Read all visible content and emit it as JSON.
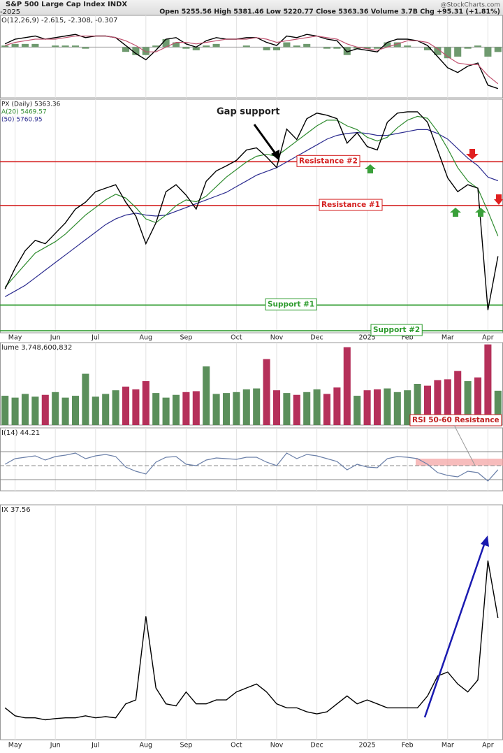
{
  "header": {
    "title": "S&P 500 Large Cap Index INDX",
    "quote": "Open 5255.56  High 5381.46  Low 5220.77  Close 5363.36  Volume 3.7B  Chg +95.31 (+1.81%)",
    "credit": "@StockCharts.com",
    "period": "-2025"
  },
  "chart_data": [
    {
      "type": "macd",
      "label": "O(12,26,9) -2.615, -2.308, -0.307",
      "ylim": [
        -3.2,
        2.0
      ],
      "hlines": [
        {
          "value": 0,
          "color": "#999999"
        }
      ],
      "series": [
        {
          "style": "bar",
          "color": "#6f9a6f",
          "values": [
            0.1,
            0.2,
            0.2,
            0.2,
            0.0,
            0.1,
            0.1,
            0.1,
            -0.1,
            0.0,
            0.0,
            0.0,
            -0.3,
            -0.5,
            -0.5,
            0.1,
            0.5,
            0.3,
            -0.1,
            -0.2,
            0.1,
            0.2,
            0.0,
            0.0,
            0.1,
            0.0,
            -0.2,
            -0.2,
            0.3,
            0.1,
            0.2,
            0.0,
            -0.1,
            -0.1,
            -0.5,
            -0.1,
            -0.1,
            -0.1,
            0.3,
            0.3,
            0.1,
            0.0,
            -0.2,
            -0.5,
            -0.7,
            -0.6,
            -0.1,
            0.1,
            -0.6,
            -0.307
          ]
        },
        {
          "style": "line",
          "color": "#000000",
          "values": [
            0.2,
            0.5,
            0.6,
            0.7,
            0.5,
            0.6,
            0.7,
            0.8,
            0.6,
            0.7,
            0.7,
            0.6,
            0.1,
            -0.4,
            -0.8,
            -0.2,
            0.5,
            0.6,
            0.2,
            0.0,
            0.4,
            0.6,
            0.5,
            0.5,
            0.6,
            0.6,
            0.3,
            0.1,
            0.7,
            0.6,
            0.8,
            0.7,
            0.5,
            0.4,
            -0.3,
            -0.1,
            -0.2,
            -0.3,
            0.3,
            0.5,
            0.5,
            0.4,
            0.1,
            -0.6,
            -1.3,
            -1.6,
            -1.2,
            -1.0,
            -2.4,
            -2.615
          ]
        },
        {
          "style": "line",
          "color": "#c0506e",
          "values": [
            0.1,
            0.3,
            0.4,
            0.5,
            0.5,
            0.5,
            0.6,
            0.7,
            0.7,
            0.7,
            0.7,
            0.6,
            0.4,
            0.1,
            -0.3,
            -0.3,
            0.0,
            0.3,
            0.3,
            0.2,
            0.3,
            0.4,
            0.5,
            0.5,
            0.5,
            0.6,
            0.5,
            0.3,
            0.4,
            0.5,
            0.6,
            0.7,
            0.6,
            0.5,
            0.2,
            0.0,
            -0.1,
            -0.2,
            0.0,
            0.2,
            0.4,
            0.4,
            0.3,
            -0.1,
            -0.6,
            -1.0,
            -1.1,
            -1.1,
            -1.8,
            -2.308
          ]
        }
      ]
    },
    {
      "type": "line",
      "annotation": "Gap support",
      "ylim": [
        4960,
        6190
      ],
      "categories": [
        null,
        "May",
        null,
        null,
        null,
        "Jun",
        null,
        null,
        null,
        "Jul",
        null,
        null,
        null,
        null,
        "Aug",
        null,
        null,
        null,
        "Sep",
        null,
        null,
        null,
        null,
        "Oct",
        null,
        null,
        null,
        "Nov",
        null,
        null,
        null,
        "Dec",
        null,
        null,
        null,
        null,
        "2025",
        null,
        null,
        null,
        "Feb",
        null,
        null,
        null,
        "Mar",
        null,
        null,
        null,
        "Apr",
        null
      ],
      "hlines": [
        {
          "value": 5861,
          "color": "#d42020",
          "label": "Resistance #2"
        },
        {
          "value": 5630,
          "color": "#d42020",
          "label": "Resistance #1"
        },
        {
          "value": 5106,
          "color": "#2a9a2a",
          "label": "Support #1"
        },
        {
          "value": 4971,
          "color": "#2a9a2a",
          "label": "Support #2"
        }
      ],
      "series": [
        {
          "style": "line",
          "color": "#2b2b8f",
          "label": "(50) 5760.95",
          "values": [
            5150,
            5180,
            5210,
            5250,
            5290,
            5330,
            5370,
            5410,
            5450,
            5490,
            5530,
            5560,
            5580,
            5590,
            5580,
            5575,
            5580,
            5600,
            5620,
            5640,
            5660,
            5680,
            5700,
            5730,
            5760,
            5790,
            5810,
            5830,
            5860,
            5890,
            5920,
            5950,
            5980,
            6000,
            6010,
            6015,
            6010,
            6000,
            6000,
            6010,
            6020,
            6030,
            6030,
            6010,
            5980,
            5930,
            5880,
            5840,
            5780,
            5760.95
          ]
        },
        {
          "style": "line",
          "color": "#2e8b2e",
          "label": "A(20) 5469.57",
          "values": [
            5200,
            5260,
            5320,
            5380,
            5410,
            5440,
            5480,
            5530,
            5580,
            5620,
            5660,
            5690,
            5670,
            5620,
            5560,
            5540,
            5580,
            5630,
            5660,
            5650,
            5680,
            5730,
            5780,
            5820,
            5860,
            5890,
            5900,
            5890,
            5930,
            5970,
            6010,
            6050,
            6080,
            6080,
            6050,
            6030,
            5990,
            5970,
            5990,
            6040,
            6080,
            6100,
            6090,
            6020,
            5930,
            5830,
            5760,
            5720,
            5600,
            5469.57
          ]
        },
        {
          "style": "line",
          "color": "#000000",
          "label": "PX (Daily) 5363.36",
          "values": [
            5191,
            5301,
            5392,
            5447,
            5429,
            5484,
            5539,
            5612,
            5648,
            5703,
            5722,
            5740,
            5648,
            5575,
            5429,
            5539,
            5703,
            5740,
            5685,
            5612,
            5758,
            5813,
            5839,
            5868,
            5923,
            5934,
            5886,
            5831,
            6033,
            5978,
            6088,
            6117,
            6106,
            6088,
            5959,
            6014,
            5941,
            5923,
            6069,
            6117,
            6124,
            6124,
            6069,
            5923,
            5776,
            5703,
            5740,
            5722,
            5080,
            5363.36
          ]
        }
      ]
    },
    {
      "type": "volume",
      "label": "lume 3,748,600,832",
      "ylim": [
        0,
        9000000000.0
      ],
      "up_color": "#5b8f5b",
      "down_color": "#b5305a",
      "values": [
        3200000000.0,
        3000000000.0,
        3400000000.0,
        3100000000.0,
        3300000000.0,
        3600000000.0,
        3000000000.0,
        3200000000.0,
        5600000000.0,
        3100000000.0,
        3400000000.0,
        3800000000.0,
        4200000000.0,
        3900000000.0,
        4800000000.0,
        3500000000.0,
        3000000000.0,
        3300000000.0,
        3600000000.0,
        3700000000.0,
        6400000000.0,
        3400000000.0,
        3500000000.0,
        3600000000.0,
        3900000000.0,
        4000000000.0,
        7200000000.0,
        3800000000.0,
        3500000000.0,
        3300000000.0,
        3600000000.0,
        3900000000.0,
        3400000000.0,
        4100000000.0,
        8500000000.0,
        3200000000.0,
        3800000000.0,
        3900000000.0,
        4000000000.0,
        3600000000.0,
        3800000000.0,
        4500000000.0,
        4300000000.0,
        4900000000.0,
        5000000000.0,
        5900000000.0,
        4800000000.0,
        5200000000.0,
        8800000000.0,
        3748600832
      ]
    },
    {
      "type": "rsi",
      "label": "I(14) 44.21",
      "ylim": [
        14,
        104
      ],
      "hlines": [
        {
          "value": 70,
          "color": "#888888"
        },
        {
          "value": 50,
          "color": "#888888",
          "dash": true
        },
        {
          "value": 30,
          "color": "#888888"
        }
      ],
      "band": {
        "range": [
          50,
          60
        ],
        "color": "#f4a0a0",
        "label": "RSI 50-60 Resistance"
      },
      "series": [
        {
          "style": "line",
          "color": "#6a7fa8",
          "values": [
            52,
            60,
            62,
            64,
            58,
            63,
            65,
            68,
            60,
            64,
            66,
            63,
            48,
            42,
            38,
            55,
            62,
            63,
            52,
            50,
            58,
            61,
            60,
            59,
            62,
            62,
            55,
            50,
            68,
            60,
            66,
            64,
            60,
            56,
            44,
            52,
            48,
            47,
            60,
            63,
            62,
            60,
            52,
            40,
            36,
            34,
            42,
            40,
            28,
            44.21
          ]
        }
      ]
    },
    {
      "type": "line",
      "label": "IX 37.56",
      "ylim": [
        7,
        66
      ],
      "categories": [
        null,
        "May",
        null,
        null,
        null,
        "Jun",
        null,
        null,
        null,
        "Jul",
        null,
        null,
        null,
        null,
        "Aug",
        null,
        null,
        null,
        "Sep",
        null,
        null,
        null,
        null,
        "Oct",
        null,
        null,
        null,
        "Nov",
        null,
        null,
        null,
        "Dec",
        null,
        null,
        null,
        null,
        "2025",
        null,
        null,
        null,
        "Feb",
        null,
        null,
        null,
        "Mar",
        null,
        null,
        null,
        "Apr",
        null
      ],
      "series": [
        {
          "style": "line",
          "color": "#000000",
          "values": [
            15,
            13,
            12.5,
            12.5,
            12,
            12.3,
            12.5,
            12.5,
            13,
            12.5,
            12.8,
            12.5,
            16,
            17,
            38,
            20,
            16,
            15.5,
            19,
            16,
            16,
            17,
            17,
            19,
            20,
            21,
            19,
            16,
            15,
            15,
            14,
            13.5,
            14,
            16,
            18,
            16,
            17,
            16,
            15,
            15,
            15,
            15,
            18,
            23,
            24,
            21,
            19,
            22,
            52,
            37.56
          ]
        }
      ]
    }
  ]
}
